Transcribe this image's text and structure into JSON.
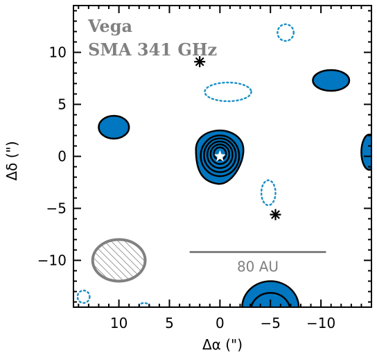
{
  "chart_data": {
    "type": "contour",
    "x_axis": {
      "label": "Δα (\")",
      "lim": [
        14.5,
        -15
      ],
      "ticks": [
        10,
        5,
        0,
        -5,
        -10
      ],
      "tick_labels": [
        "10",
        "5",
        "0",
        "−5",
        "−10"
      ]
    },
    "y_axis": {
      "label": "Δδ (\")",
      "lim": [
        -14.5,
        14.5
      ],
      "ticks": [
        10,
        5,
        0,
        -5,
        -10
      ],
      "tick_labels": [
        "10",
        "5",
        "0",
        "−5",
        "−10"
      ]
    },
    "annotations": {
      "line1": "Vega",
      "line2": "SMA 341 GHz",
      "scale_bar_label": "80 AU",
      "scale_bar_x": [
        -10.5,
        3
      ],
      "scale_bar_y": -9.2
    },
    "star": {
      "x": 0,
      "y": 0
    },
    "asterisks": [
      {
        "x": 2,
        "y": 9.1
      },
      {
        "x": -5.5,
        "y": -5.6
      }
    ],
    "positive_blobs": [
      {
        "x": 0,
        "y": 0,
        "rx": 2.5,
        "ry": 2.6,
        "levels": 6
      },
      {
        "x": 10.5,
        "y": 2.8,
        "rx": 1.5,
        "ry": 1.1,
        "levels": 1
      },
      {
        "x": -11,
        "y": 7.3,
        "rx": 1.8,
        "ry": 1.0,
        "levels": 1
      },
      {
        "x": -14.8,
        "y": 0.4,
        "rx": 0.8,
        "ry": 1.7,
        "levels": 1
      },
      {
        "x": -5,
        "y": -14.5,
        "rx": 2.8,
        "ry": 2.5,
        "levels": 2
      }
    ],
    "negative_contours": [
      {
        "x": -6.5,
        "y": 11.9,
        "rx": 0.8,
        "ry": 0.8
      },
      {
        "x": -0.8,
        "y": 6.2,
        "rx": 2.3,
        "ry": 0.9
      },
      {
        "x": -4.8,
        "y": -3.5,
        "rx": 0.7,
        "ry": 1.2
      },
      {
        "x": 13.5,
        "y": -13.5,
        "rx": 0.6,
        "ry": 0.6
      },
      {
        "x": 7.5,
        "y": -14.4,
        "rx": 0.5,
        "ry": 0.3
      }
    ],
    "beam": {
      "x": 10.0,
      "y": -10.0,
      "rx": 2.6,
      "ry": 2.0
    },
    "colors": {
      "fill": "#0077c0",
      "contour": "#000000",
      "negative": "#1e90c8",
      "annotation": "#808080"
    }
  }
}
